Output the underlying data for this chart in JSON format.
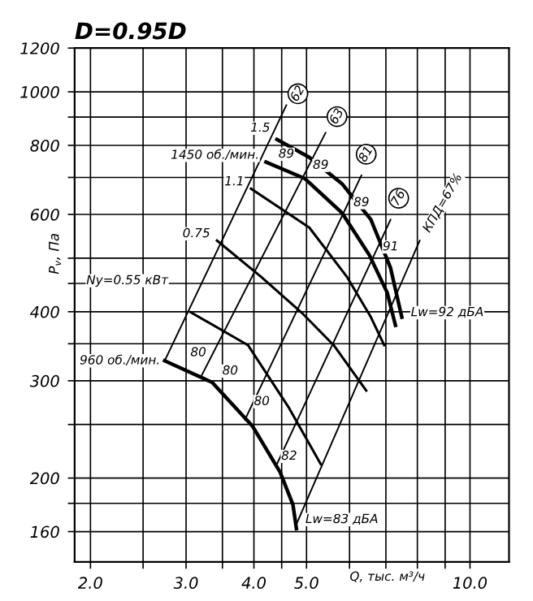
{
  "chart_data": {
    "type": "line",
    "title": "D=0.95D",
    "xlabel": "Q, тыс. м³/ч",
    "ylabel": "P$_{v}$, Па",
    "log": "xy",
    "grid": true,
    "marker": "none",
    "line_style": "solid",
    "xlim": [
      1.87,
      11.8
    ],
    "ylim": [
      141,
      1200
    ],
    "xticks": [
      {
        "value": 2,
        "label": "2.0"
      },
      {
        "value": 2.5,
        "label": null
      },
      {
        "value": 3,
        "label": "3.0"
      },
      {
        "value": 3.5,
        "label": null
      },
      {
        "value": 4,
        "label": "4.0"
      },
      {
        "value": 4.5,
        "label": null
      },
      {
        "value": 5,
        "label": "5.0"
      },
      {
        "value": 6,
        "label": null
      },
      {
        "value": 7,
        "label": null
      },
      {
        "value": 8,
        "label": null
      },
      {
        "value": 9,
        "label": null
      },
      {
        "value": 10,
        "label": "10.0"
      }
    ],
    "yticks": [
      160,
      {
        "value": 180,
        "label": null
      },
      200,
      {
        "value": 250,
        "label": null
      },
      300,
      {
        "value": 350,
        "label": null
      },
      400,
      {
        "value": 450,
        "label": null
      },
      {
        "value": 500,
        "label": null
      },
      600,
      {
        "value": 700,
        "label": null
      },
      800,
      {
        "value": 900,
        "label": null
      },
      1000,
      1200
    ],
    "series": [
      {
        "color": "#000000",
        "x": [
          4.41,
          5.06,
          5.81,
          6.57,
          7.14,
          7.49
        ],
        "values": [
          820,
          761,
          682,
          587,
          480,
          391
        ]
      },
      {
        "color": "#000000",
        "x": [
          4.21,
          4.96,
          5.81,
          6.53,
          7.04,
          7.29
        ],
        "values": [
          746,
          697,
          604,
          506,
          433,
          378
        ]
      },
      {
        "color": "#000000",
        "x": [
          3.95,
          5.06,
          5.93,
          6.57,
          6.95
        ],
        "values": [
          668,
          568,
          463,
          391,
          348
        ]
      },
      {
        "color": "#000000",
        "x": [
          3.42,
          4.12,
          4.89,
          5.61,
          6.44
        ],
        "values": [
          538,
          463,
          399,
          348,
          288
        ]
      },
      {
        "color": "#000000",
        "x": [
          3.06,
          3.9,
          4.63,
          5.31
        ],
        "values": [
          399,
          348,
          269,
          212
        ]
      },
      {
        "color": "#000000",
        "x": [
          2.74,
          3.35,
          3.98,
          4.47,
          4.72,
          4.79
        ],
        "values": [
          326,
          298,
          248,
          205,
          179,
          162
        ]
      },
      {
        "color": "#000000",
        "x": [
          2.74,
          4.59
        ],
        "values": [
          326,
          946
        ]
      },
      {
        "color": "#000000",
        "x": [
          3.19,
          5.42
        ],
        "values": [
          304,
          843
        ]
      },
      {
        "color": "#000000",
        "x": [
          3.85,
          6.31
        ],
        "values": [
          255,
          706
        ]
      },
      {
        "color": "#000000",
        "x": [
          4.41,
          7.14
        ],
        "values": [
          212,
          587
        ]
      },
      {
        "color": "#000000",
        "x": [
          4.79,
          8.08
        ],
        "values": [
          165,
          538
        ]
      }
    ],
    "annotations": [
      {
        "text": "1.5",
        "x": 4.41,
        "y": 820
      },
      {
        "text": "1450 об./мин.",
        "x": 4.21,
        "y": 746
      },
      {
        "text": "89",
        "x": 4.59,
        "y": 771
      },
      {
        "text": "89",
        "x": 5.31,
        "y": 736
      },
      {
        "text": "89",
        "x": 6.31,
        "y": 630
      },
      {
        "text": "91",
        "x": 7.14,
        "y": 524
      },
      {
        "text": "1.1",
        "x": 3.95,
        "y": 668
      },
      {
        "text": "0.75",
        "x": 3.42,
        "y": 538
      },
      {
        "text": "Ny=0.55 кВт",
        "x": 3.06,
        "y": 399
      },
      {
        "text": "960 об./мин.",
        "x": 2.74,
        "y": 326
      },
      {
        "text": "80",
        "x": 3.19,
        "y": 304
      },
      {
        "text": "80",
        "x": 3.35,
        "y": 298
      },
      {
        "text": "80",
        "x": 3.98,
        "y": 248
      },
      {
        "text": "82",
        "x": 4.47,
        "y": 205
      },
      {
        "text": "Lw=83 дБА",
        "x": 4.79,
        "y": 162
      },
      {
        "text": "Lw=92 дБА",
        "x": 7.49,
        "y": 391
      },
      {
        "text": "62",
        "x": 4.82,
        "y": 992
      },
      {
        "text": "63",
        "x": 5.69,
        "y": 902
      },
      {
        "text": "81",
        "x": 6.44,
        "y": 771
      },
      {
        "text": "76",
        "x": 7.39,
        "y": 642
      },
      {
        "text": "КПД=67%",
        "x": 8.08,
        "y": 538
      }
    ]
  }
}
